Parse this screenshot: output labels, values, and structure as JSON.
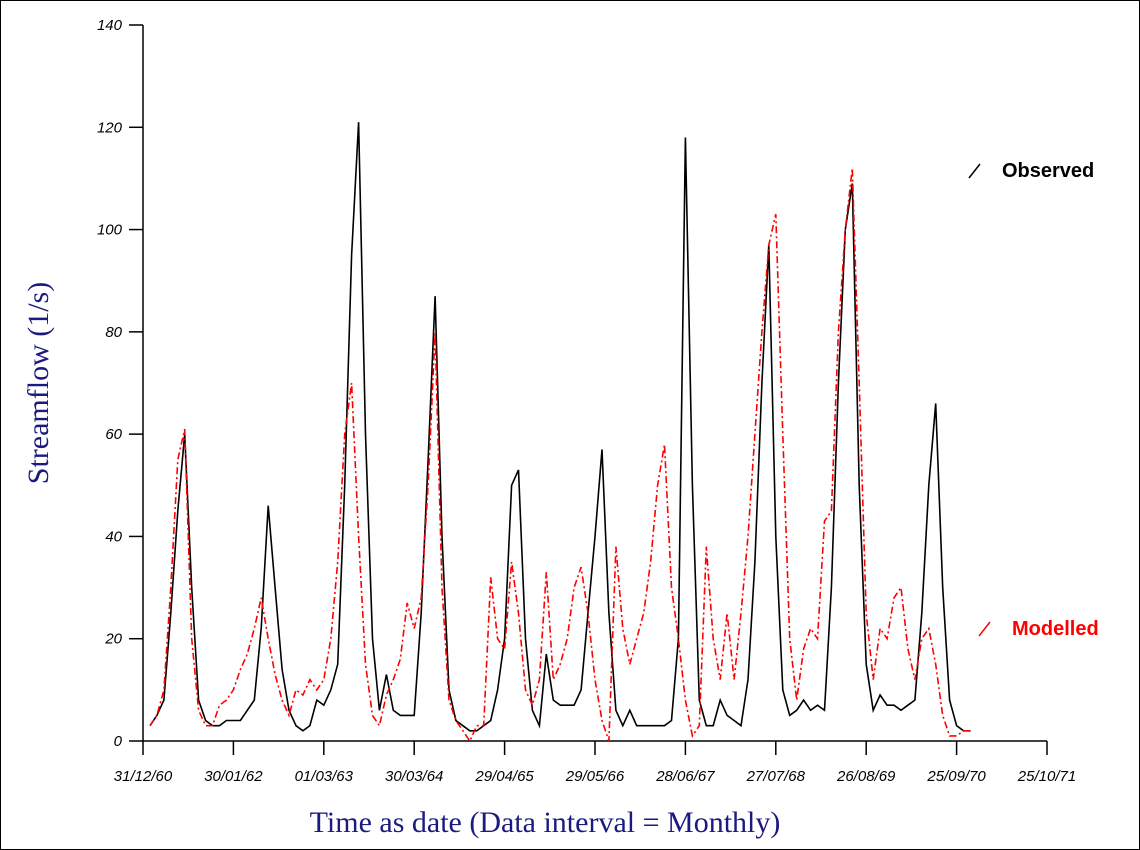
{
  "chart_data": {
    "type": "line",
    "ylabel": "Streamflow (1/s)",
    "xlabel": "Time as date (Data interval = Monthly)",
    "xlim": [
      0,
      130
    ],
    "xticks": [
      {
        "value": 0,
        "label": "31/12/60"
      },
      {
        "value": 13,
        "label": "30/01/62"
      },
      {
        "value": 26,
        "label": "01/03/63"
      },
      {
        "value": 39,
        "label": "30/03/64"
      },
      {
        "value": 52,
        "label": "29/04/65"
      },
      {
        "value": 65,
        "label": "29/05/66"
      },
      {
        "value": 78,
        "label": "28/06/67"
      },
      {
        "value": 91,
        "label": "27/07/68"
      },
      {
        "value": 104,
        "label": "26/08/69"
      },
      {
        "value": 117,
        "label": "25/09/70"
      },
      {
        "value": 130,
        "label": "25/10/71"
      }
    ],
    "ylim": [
      0,
      140
    ],
    "yticks": [
      0,
      20,
      40,
      60,
      80,
      100,
      120,
      140
    ],
    "grid": false,
    "x": [
      1,
      2,
      3,
      4,
      5,
      6,
      7,
      8,
      9,
      10,
      11,
      12,
      13,
      14,
      15,
      16,
      17,
      18,
      19,
      20,
      21,
      22,
      23,
      24,
      25,
      26,
      27,
      28,
      29,
      30,
      31,
      32,
      33,
      34,
      35,
      36,
      37,
      38,
      39,
      40,
      41,
      42,
      43,
      44,
      45,
      46,
      47,
      48,
      49,
      50,
      51,
      52,
      53,
      54,
      55,
      56,
      57,
      58,
      59,
      60,
      61,
      62,
      63,
      64,
      65,
      66,
      67,
      68,
      69,
      70,
      71,
      72,
      73,
      74,
      75,
      76,
      77,
      78,
      79,
      80,
      81,
      82,
      83,
      84,
      85,
      86,
      87,
      88,
      89,
      90,
      91,
      92,
      93,
      94,
      95,
      96,
      97,
      98,
      99,
      100,
      101,
      102,
      103,
      104,
      105,
      106,
      107,
      108,
      109,
      110,
      111,
      112,
      113,
      114,
      115,
      116,
      117,
      118,
      119
    ],
    "series": [
      {
        "name": "Observed",
        "color": "#000000",
        "dash": "solid",
        "values": [
          3,
          5,
          8,
          25,
          45,
          60,
          30,
          8,
          4,
          3,
          3,
          4,
          4,
          4,
          6,
          8,
          22,
          46,
          30,
          14,
          6,
          3,
          2,
          3,
          8,
          7,
          10,
          15,
          50,
          95,
          121,
          60,
          20,
          6,
          13,
          6,
          5,
          5,
          5,
          25,
          55,
          87,
          40,
          10,
          4,
          3,
          2,
          2,
          3,
          4,
          10,
          20,
          50,
          53,
          20,
          6,
          3,
          17,
          8,
          7,
          7,
          7,
          10,
          25,
          40,
          57,
          25,
          6,
          3,
          6,
          3,
          3,
          3,
          3,
          3,
          4,
          20,
          118,
          50,
          8,
          3,
          3,
          8,
          5,
          4,
          3,
          12,
          35,
          70,
          97,
          40,
          10,
          5,
          6,
          8,
          6,
          7,
          6,
          30,
          70,
          100,
          109,
          50,
          15,
          6,
          9,
          7,
          7,
          6,
          7,
          8,
          25,
          50,
          66,
          30,
          8,
          3,
          2,
          2
        ]
      },
      {
        "name": "Modelled",
        "color": "#ff0000",
        "dash": "dashdot",
        "values": [
          3,
          5,
          10,
          30,
          55,
          61,
          20,
          6,
          3,
          3,
          7,
          8,
          10,
          14,
          17,
          22,
          28,
          20,
          13,
          8,
          5,
          10,
          9,
          12,
          10,
          12,
          20,
          35,
          60,
          70,
          40,
          15,
          5,
          3,
          9,
          12,
          16,
          27,
          22,
          28,
          50,
          80,
          30,
          8,
          4,
          2,
          0,
          3,
          3,
          32,
          20,
          18,
          35,
          25,
          10,
          7,
          12,
          33,
          12,
          15,
          20,
          30,
          34,
          25,
          12,
          4,
          0,
          38,
          22,
          15,
          20,
          25,
          35,
          50,
          58,
          30,
          20,
          8,
          1,
          3,
          38,
          20,
          12,
          25,
          12,
          25,
          40,
          60,
          80,
          97,
          103,
          60,
          20,
          8,
          18,
          22,
          20,
          43,
          45,
          80,
          100,
          112,
          70,
          25,
          12,
          22,
          20,
          28,
          30,
          18,
          12,
          20,
          22,
          15,
          5,
          1,
          1,
          2,
          2
        ]
      }
    ]
  }
}
